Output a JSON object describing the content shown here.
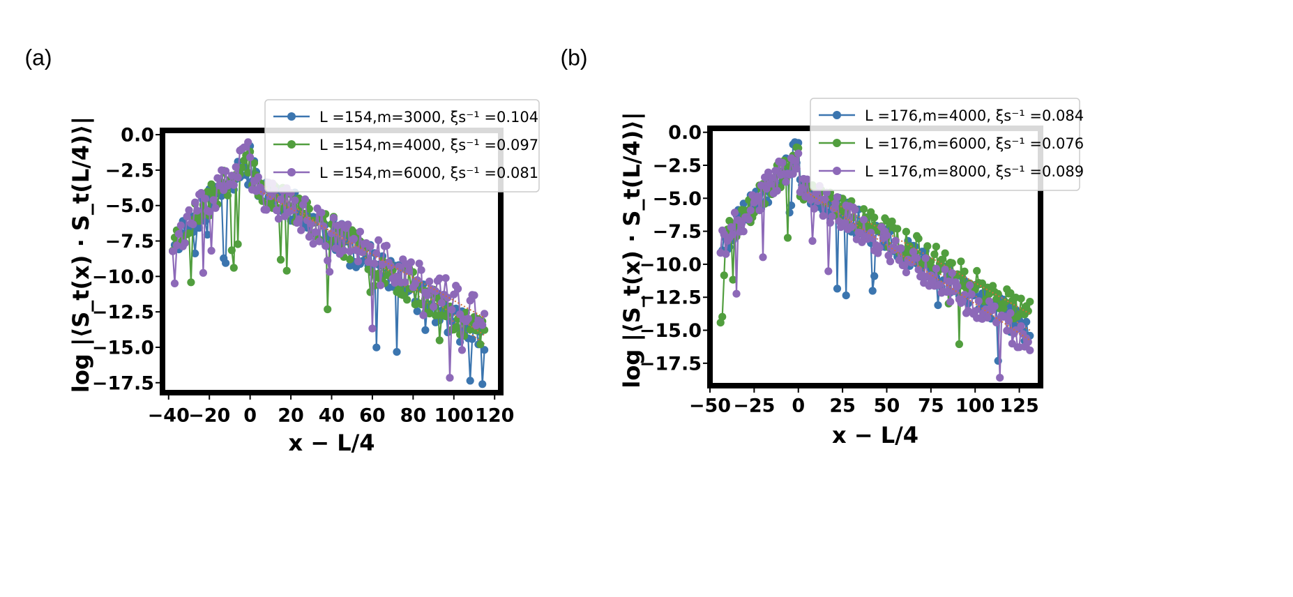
{
  "chart_data": [
    {
      "type": "line",
      "panel_label": "(a)",
      "ylabel_prefix": "log",
      "ylabel_expr": "|⟨S_t(x) · S_t(L/4)⟩|",
      "xlabel": "x − L/4",
      "xlim": [
        -43,
        123
      ],
      "ylim": [
        -18.2,
        0.3
      ],
      "xticks": [
        -40,
        -20,
        0,
        20,
        40,
        60,
        80,
        100,
        120
      ],
      "xtick_labels": [
        "−40",
        "−20",
        "0",
        "20",
        "40",
        "60",
        "80",
        "100",
        "120"
      ],
      "yticks": [
        0.0,
        -2.5,
        -5.0,
        -7.5,
        -10.0,
        -12.5,
        -15.0,
        -17.5
      ],
      "ytick_labels": [
        "0.0",
        "−2.5",
        "−5.0",
        "−7.5",
        "−10.0",
        "−12.5",
        "−15.0",
        "−17.5"
      ],
      "legend_position": "top-right",
      "series": [
        {
          "name": "L =154,m=3000, ξs⁻¹ =0.104",
          "L": "154",
          "m": "3000",
          "xi": "0.104",
          "color": "#3b75af",
          "x0": -38,
          "x1": 115,
          "step": 1,
          "slope": -0.104,
          "c0": -2.8,
          "amp": 1.2,
          "seed": 11
        },
        {
          "name": "L =154,m=4000, ξs⁻¹ =0.097",
          "L": "154",
          "m": "4000",
          "xi": "0.097",
          "color": "#519e3e",
          "x0": -38,
          "x1": 115,
          "step": 1,
          "slope": -0.097,
          "c0": -3.0,
          "amp": 1.2,
          "seed": 23
        },
        {
          "name": "L =154,m=6000, ξs⁻¹ =0.081",
          "L": "154",
          "m": "6000",
          "xi": "0.081",
          "color": "#8d69b8",
          "x0": -38,
          "x1": 115,
          "step": 1,
          "slope": -0.081,
          "c0": -3.6,
          "amp": 1.3,
          "seed": 37
        }
      ],
      "fit_color": "#d0703a"
    },
    {
      "type": "line",
      "panel_label": "(b)",
      "ylabel_prefix": "log",
      "ylabel_expr": "|⟨S_t(x) · S_t(L/4)⟩|",
      "xlabel": "x − L/4",
      "xlim": [
        -50,
        137
      ],
      "ylim": [
        -19.2,
        0.3
      ],
      "xticks": [
        -50,
        -25,
        0,
        25,
        50,
        75,
        100,
        125
      ],
      "xtick_labels": [
        "−50",
        "−25",
        "0",
        "25",
        "50",
        "75",
        "100",
        "125"
      ],
      "yticks": [
        0.0,
        -2.5,
        -5.0,
        -7.5,
        -10.0,
        -12.5,
        -15.0,
        -17.5
      ],
      "ytick_labels": [
        "0.0",
        "−2.5",
        "−5.0",
        "−7.5",
        "−10.0",
        "−12.5",
        "−15.0",
        "−17.5"
      ],
      "legend_position": "top-right",
      "series": [
        {
          "name": "L =176,m=4000, ξs⁻¹ =0.084",
          "L": "176",
          "m": "4000",
          "xi": "0.084",
          "color": "#3b75af",
          "x0": -44,
          "x1": 131,
          "step": 1,
          "slope": -0.084,
          "c0": -4.0,
          "amp": 1.1,
          "seed": 5
        },
        {
          "name": "L =176,m=6000, ξs⁻¹ =0.076",
          "L": "176",
          "m": "6000",
          "xi": "0.076",
          "color": "#519e3e",
          "x0": -44,
          "x1": 131,
          "step": 1,
          "slope": -0.076,
          "c0": -3.8,
          "amp": 1.1,
          "seed": 19
        },
        {
          "name": "L =176,m=8000, ξs⁻¹ =0.089",
          "L": "176",
          "m": "8000",
          "xi": "0.089",
          "color": "#8d69b8",
          "x0": -44,
          "x1": 131,
          "step": 1,
          "slope": -0.089,
          "c0": -4.1,
          "amp": 1.2,
          "seed": 41
        }
      ],
      "fit_color": "#d0703a"
    }
  ]
}
